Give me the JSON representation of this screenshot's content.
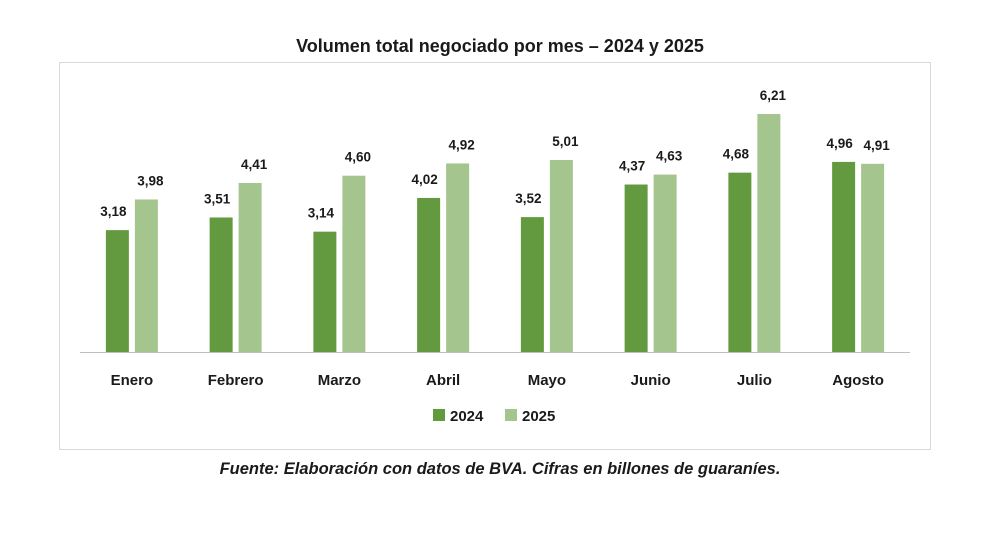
{
  "chart_data": {
    "type": "bar",
    "title": "Volumen total negociado por mes – 2024 y 2025",
    "categories": [
      "Enero",
      "Febrero",
      "Marzo",
      "Abril",
      "Mayo",
      "Junio",
      "Julio",
      "Agosto"
    ],
    "series": [
      {
        "name": "2024",
        "color": "#639a3f",
        "values": [
          3.18,
          3.51,
          3.14,
          4.02,
          3.52,
          4.37,
          4.68,
          4.96
        ],
        "labels": [
          "3,18",
          "3,51",
          "3,14",
          "4,02",
          "3,52",
          "4,37",
          "4,68",
          "4,96"
        ]
      },
      {
        "name": "2025",
        "color": "#a5c58f",
        "values": [
          3.98,
          4.41,
          4.6,
          4.92,
          5.01,
          4.63,
          6.21,
          4.91
        ],
        "labels": [
          "3,98",
          "4,41",
          "4,60",
          "4,92",
          "5,01",
          "4,63",
          "6,21",
          "4,91"
        ]
      }
    ],
    "ylim": [
      0,
      6.21
    ],
    "grid": false,
    "legend": "bottom",
    "xlabel": "",
    "ylabel": ""
  },
  "footnote": "Fuente: Elaboración con datos de BVA. Cifras en billones de guaraníes."
}
